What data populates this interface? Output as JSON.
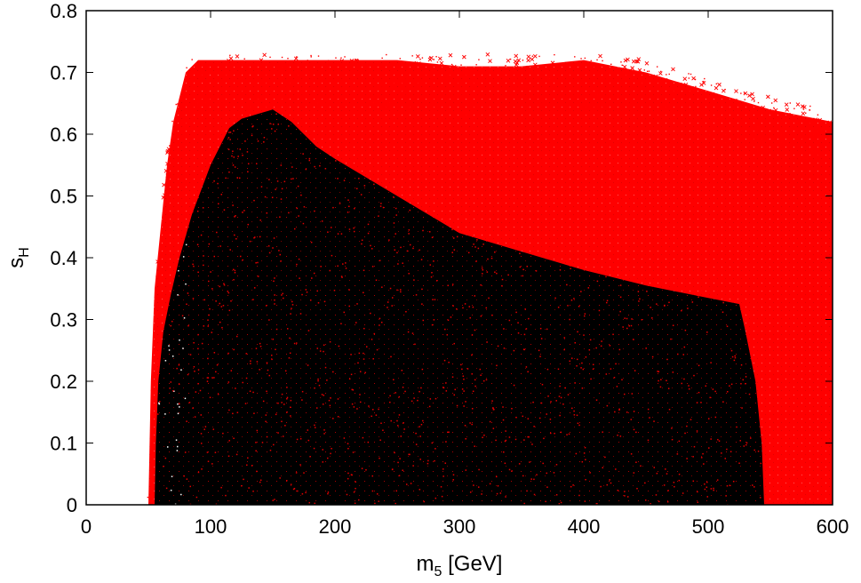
{
  "chart_data": {
    "type": "scatter",
    "title": "",
    "xlabel": {
      "main": "m",
      "sub": "5",
      "suffix": " [GeV]"
    },
    "ylabel": {
      "main": "s",
      "sub": "H"
    },
    "xlim": [
      0,
      600
    ],
    "ylim": [
      0,
      0.8
    ],
    "xticks": [
      0,
      100,
      200,
      300,
      400,
      500,
      600
    ],
    "yticks": [
      0,
      0.1,
      0.2,
      0.3,
      0.4,
      0.5,
      0.6,
      0.7,
      0.8
    ],
    "grid": false,
    "legend": "none",
    "series": [
      {
        "color": "#ff0000",
        "marker": "dots-and-crosses",
        "region_upper_envelope": [
          [
            50,
            0.0
          ],
          [
            52,
            0.2
          ],
          [
            55,
            0.35
          ],
          [
            60,
            0.45
          ],
          [
            65,
            0.55
          ],
          [
            70,
            0.62
          ],
          [
            80,
            0.7
          ],
          [
            90,
            0.72
          ],
          [
            120,
            0.72
          ],
          [
            150,
            0.72
          ],
          [
            200,
            0.72
          ],
          [
            250,
            0.72
          ],
          [
            300,
            0.71
          ],
          [
            350,
            0.71
          ],
          [
            400,
            0.72
          ],
          [
            450,
            0.7
          ],
          [
            500,
            0.67
          ],
          [
            550,
            0.64
          ],
          [
            600,
            0.62
          ],
          [
            600,
            0.0
          ]
        ]
      },
      {
        "color": "#000000",
        "marker": "dots",
        "region_boundary": [
          [
            55,
            0.0
          ],
          [
            56,
            0.1
          ],
          [
            58,
            0.2
          ],
          [
            62,
            0.28
          ],
          [
            68,
            0.34
          ],
          [
            75,
            0.4
          ],
          [
            85,
            0.47
          ],
          [
            100,
            0.55
          ],
          [
            115,
            0.61
          ],
          [
            125,
            0.625
          ],
          [
            150,
            0.64
          ],
          [
            165,
            0.62
          ],
          [
            185,
            0.58
          ],
          [
            200,
            0.56
          ],
          [
            250,
            0.5
          ],
          [
            300,
            0.44
          ],
          [
            350,
            0.41
          ],
          [
            400,
            0.38
          ],
          [
            450,
            0.355
          ],
          [
            500,
            0.335
          ],
          [
            525,
            0.325
          ],
          [
            530,
            0.28
          ],
          [
            538,
            0.2
          ],
          [
            543,
            0.1
          ],
          [
            545,
            0.0
          ]
        ]
      }
    ]
  }
}
